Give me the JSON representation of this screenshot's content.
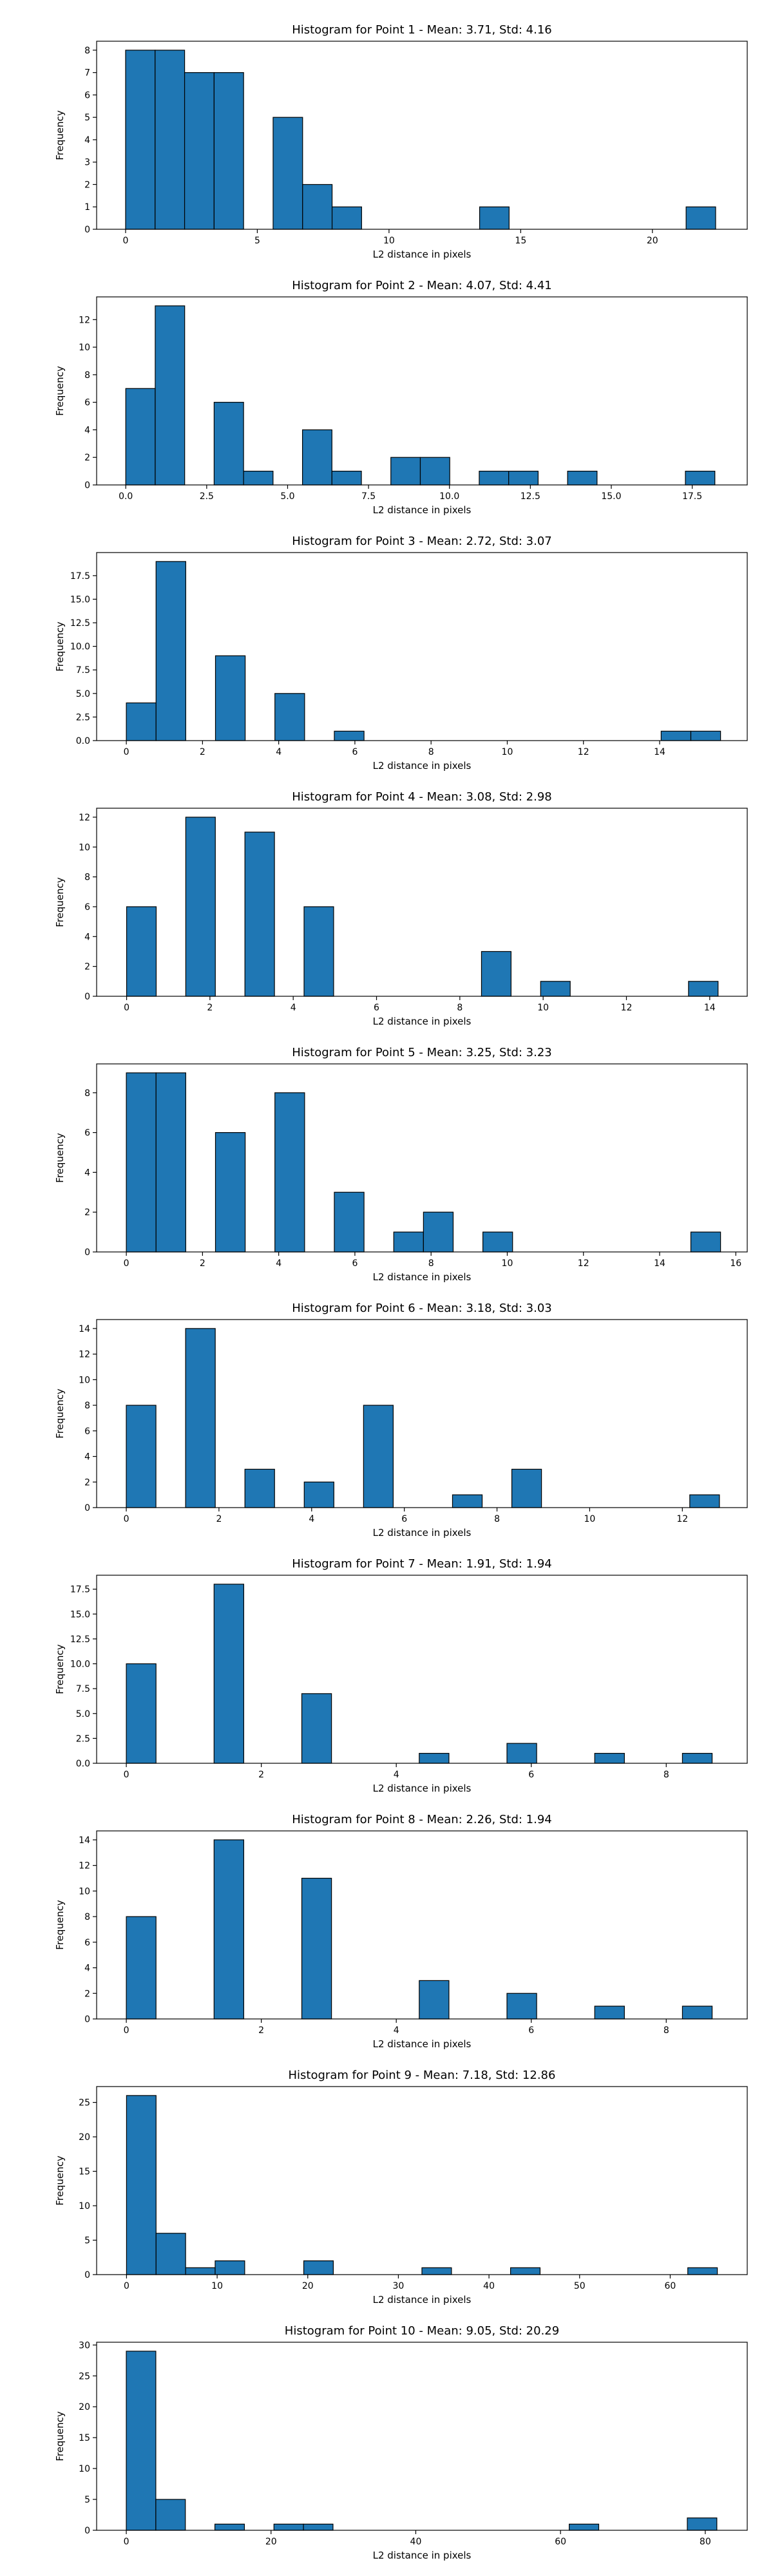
{
  "colors": {
    "bar": "#1f77b4",
    "edge": "#000000"
  },
  "chart_data": [
    {
      "type": "bar",
      "title": "Histogram for Point 1 - Mean: 3.71, Std: 4.16",
      "xlabel": "L2 distance in pixels",
      "ylabel": "Frequency",
      "xlim": [
        -1.1,
        23.6
      ],
      "ylim": [
        0,
        8.4
      ],
      "xticks": [
        0,
        5,
        10,
        15,
        20
      ],
      "yticks": [
        0,
        1,
        2,
        3,
        4,
        5,
        6,
        7,
        8
      ],
      "bins": [
        {
          "x0": 0.0,
          "x1": 1.12,
          "count": 8
        },
        {
          "x0": 1.12,
          "x1": 2.24,
          "count": 8
        },
        {
          "x0": 2.24,
          "x1": 3.36,
          "count": 7
        },
        {
          "x0": 3.36,
          "x1": 4.48,
          "count": 7
        },
        {
          "x0": 5.6,
          "x1": 6.72,
          "count": 5
        },
        {
          "x0": 6.72,
          "x1": 7.84,
          "count": 2
        },
        {
          "x0": 7.84,
          "x1": 8.96,
          "count": 1
        },
        {
          "x0": 13.44,
          "x1": 14.56,
          "count": 1
        },
        {
          "x0": 21.28,
          "x1": 22.4,
          "count": 1
        }
      ]
    },
    {
      "type": "bar",
      "title": "Histogram for Point 2 - Mean: 4.07, Std: 4.41",
      "xlabel": "L2 distance in pixels",
      "ylabel": "Frequency",
      "xlim": [
        -0.9,
        19.2
      ],
      "ylim": [
        0,
        13.65
      ],
      "xticks": [
        0.0,
        2.5,
        5.0,
        7.5,
        10.0,
        12.5,
        15.0,
        17.5
      ],
      "xtick_labels": [
        "0.0",
        "2.5",
        "5.0",
        "7.5",
        "10.0",
        "12.5",
        "15.0",
        "17.5"
      ],
      "yticks": [
        0,
        2,
        4,
        6,
        8,
        10,
        12
      ],
      "bins": [
        {
          "x0": 0.0,
          "x1": 0.91,
          "count": 7
        },
        {
          "x0": 0.91,
          "x1": 1.82,
          "count": 13
        },
        {
          "x0": 2.73,
          "x1": 3.64,
          "count": 6
        },
        {
          "x0": 3.64,
          "x1": 4.55,
          "count": 1
        },
        {
          "x0": 5.46,
          "x1": 6.37,
          "count": 4
        },
        {
          "x0": 6.37,
          "x1": 7.28,
          "count": 1
        },
        {
          "x0": 8.19,
          "x1": 9.1,
          "count": 2
        },
        {
          "x0": 9.1,
          "x1": 10.01,
          "count": 2
        },
        {
          "x0": 10.92,
          "x1": 11.83,
          "count": 1
        },
        {
          "x0": 11.83,
          "x1": 12.74,
          "count": 1
        },
        {
          "x0": 13.65,
          "x1": 14.56,
          "count": 1
        },
        {
          "x0": 17.29,
          "x1": 18.2,
          "count": 1
        }
      ]
    },
    {
      "type": "bar",
      "title": "Histogram for Point 3 - Mean: 2.72, Std: 3.07",
      "xlabel": "L2 distance in pixels",
      "ylabel": "Frequency",
      "xlim": [
        -0.78,
        16.3
      ],
      "ylim": [
        0,
        19.95
      ],
      "xticks": [
        0,
        2,
        4,
        6,
        8,
        10,
        12,
        14
      ],
      "yticks": [
        0.0,
        2.5,
        5.0,
        7.5,
        10.0,
        12.5,
        15.0,
        17.5
      ],
      "ytick_labels": [
        "0.0",
        "2.5",
        "5.0",
        "7.5",
        "10.0",
        "12.5",
        "15.0",
        "17.5"
      ],
      "bins": [
        {
          "x0": 0.0,
          "x1": 0.78,
          "count": 4
        },
        {
          "x0": 0.78,
          "x1": 1.56,
          "count": 19
        },
        {
          "x0": 2.34,
          "x1": 3.12,
          "count": 9
        },
        {
          "x0": 3.9,
          "x1": 4.68,
          "count": 5
        },
        {
          "x0": 5.46,
          "x1": 6.24,
          "count": 1
        },
        {
          "x0": 14.04,
          "x1": 14.82,
          "count": 1
        },
        {
          "x0": 14.82,
          "x1": 15.6,
          "count": 1
        }
      ]
    },
    {
      "type": "bar",
      "title": "Histogram for Point 4 - Mean: 3.08, Std: 2.98",
      "xlabel": "L2 distance in pixels",
      "ylabel": "Frequency",
      "xlim": [
        -0.72,
        14.9
      ],
      "ylim": [
        0,
        12.6
      ],
      "xticks": [
        0,
        2,
        4,
        6,
        8,
        10,
        12,
        14
      ],
      "yticks": [
        0,
        2,
        4,
        6,
        8,
        10,
        12
      ],
      "bins": [
        {
          "x0": 0.0,
          "x1": 0.71,
          "count": 6
        },
        {
          "x0": 1.42,
          "x1": 2.13,
          "count": 12
        },
        {
          "x0": 2.84,
          "x1": 3.55,
          "count": 11
        },
        {
          "x0": 4.26,
          "x1": 4.97,
          "count": 6
        },
        {
          "x0": 8.52,
          "x1": 9.23,
          "count": 3
        },
        {
          "x0": 9.94,
          "x1": 10.65,
          "count": 1
        },
        {
          "x0": 13.49,
          "x1": 14.2,
          "count": 1
        }
      ]
    },
    {
      "type": "bar",
      "title": "Histogram for Point 5 - Mean: 3.25, Std: 3.23",
      "xlabel": "L2 distance in pixels",
      "ylabel": "Frequency",
      "xlim": [
        -0.78,
        16.3
      ],
      "ylim": [
        0,
        9.45
      ],
      "xticks": [
        0,
        2,
        4,
        6,
        8,
        10,
        12,
        14,
        16
      ],
      "yticks": [
        0,
        2,
        4,
        6,
        8
      ],
      "bins": [
        {
          "x0": 0.0,
          "x1": 0.78,
          "count": 9
        },
        {
          "x0": 0.78,
          "x1": 1.56,
          "count": 9
        },
        {
          "x0": 2.34,
          "x1": 3.12,
          "count": 6
        },
        {
          "x0": 3.9,
          "x1": 4.68,
          "count": 8
        },
        {
          "x0": 5.46,
          "x1": 6.24,
          "count": 3
        },
        {
          "x0": 7.02,
          "x1": 7.8,
          "count": 1
        },
        {
          "x0": 7.8,
          "x1": 8.58,
          "count": 2
        },
        {
          "x0": 9.36,
          "x1": 10.14,
          "count": 1
        },
        {
          "x0": 14.82,
          "x1": 15.6,
          "count": 1
        }
      ]
    },
    {
      "type": "bar",
      "title": "Histogram for Point 6 - Mean: 3.18, Std: 3.03",
      "xlabel": "L2 distance in pixels",
      "ylabel": "Frequency",
      "xlim": [
        -0.64,
        13.4
      ],
      "ylim": [
        0,
        14.7
      ],
      "xticks": [
        0,
        2,
        4,
        6,
        8,
        10,
        12
      ],
      "yticks": [
        0,
        2,
        4,
        6,
        8,
        10,
        12,
        14
      ],
      "bins": [
        {
          "x0": 0.0,
          "x1": 0.64,
          "count": 8
        },
        {
          "x0": 1.28,
          "x1": 1.92,
          "count": 14
        },
        {
          "x0": 2.56,
          "x1": 3.2,
          "count": 3
        },
        {
          "x0": 3.84,
          "x1": 4.48,
          "count": 2
        },
        {
          "x0": 5.12,
          "x1": 5.76,
          "count": 8
        },
        {
          "x0": 7.04,
          "x1": 7.68,
          "count": 1
        },
        {
          "x0": 8.32,
          "x1": 8.96,
          "count": 3
        },
        {
          "x0": 12.16,
          "x1": 12.8,
          "count": 1
        }
      ]
    },
    {
      "type": "bar",
      "title": "Histogram for Point 7 - Mean: 1.91, Std: 1.94",
      "xlabel": "L2 distance in pixels",
      "ylabel": "Frequency",
      "xlim": [
        -0.44,
        9.2
      ],
      "ylim": [
        0,
        18.9
      ],
      "xticks": [
        0,
        2,
        4,
        6,
        8
      ],
      "yticks": [
        0.0,
        2.5,
        5.0,
        7.5,
        10.0,
        12.5,
        15.0,
        17.5
      ],
      "ytick_labels": [
        "0.0",
        "2.5",
        "5.0",
        "7.5",
        "10.0",
        "12.5",
        "15.0",
        "17.5"
      ],
      "bins": [
        {
          "x0": 0.0,
          "x1": 0.44,
          "count": 10
        },
        {
          "x0": 1.3,
          "x1": 1.74,
          "count": 18
        },
        {
          "x0": 2.6,
          "x1": 3.04,
          "count": 7
        },
        {
          "x0": 4.34,
          "x1": 4.78,
          "count": 1
        },
        {
          "x0": 5.64,
          "x1": 6.08,
          "count": 2
        },
        {
          "x0": 6.94,
          "x1": 7.38,
          "count": 1
        },
        {
          "x0": 8.24,
          "x1": 8.68,
          "count": 1
        }
      ]
    },
    {
      "type": "bar",
      "title": "Histogram for Point 8 - Mean: 2.26, Std: 1.94",
      "xlabel": "L2 distance in pixels",
      "ylabel": "Frequency",
      "xlim": [
        -0.44,
        9.2
      ],
      "ylim": [
        0,
        14.7
      ],
      "xticks": [
        0,
        2,
        4,
        6,
        8
      ],
      "yticks": [
        0,
        2,
        4,
        6,
        8,
        10,
        12,
        14
      ],
      "bins": [
        {
          "x0": 0.0,
          "x1": 0.44,
          "count": 8
        },
        {
          "x0": 1.3,
          "x1": 1.74,
          "count": 14
        },
        {
          "x0": 2.6,
          "x1": 3.04,
          "count": 11
        },
        {
          "x0": 4.34,
          "x1": 4.78,
          "count": 3
        },
        {
          "x0": 5.64,
          "x1": 6.08,
          "count": 2
        },
        {
          "x0": 6.94,
          "x1": 7.38,
          "count": 1
        },
        {
          "x0": 8.24,
          "x1": 8.68,
          "count": 1
        }
      ]
    },
    {
      "type": "bar",
      "title": "Histogram for Point 9 - Mean: 7.18, Std: 12.86",
      "xlabel": "L2 distance in pixels",
      "ylabel": "Frequency",
      "xlim": [
        -3.3,
        68.5
      ],
      "ylim": [
        0,
        27.3
      ],
      "xticks": [
        0,
        10,
        20,
        30,
        40,
        50,
        60
      ],
      "yticks": [
        0,
        5,
        10,
        15,
        20,
        25
      ],
      "bins": [
        {
          "x0": 0.0,
          "x1": 3.26,
          "count": 26
        },
        {
          "x0": 3.26,
          "x1": 6.52,
          "count": 6
        },
        {
          "x0": 6.52,
          "x1": 9.78,
          "count": 1
        },
        {
          "x0": 9.78,
          "x1": 13.04,
          "count": 2
        },
        {
          "x0": 19.56,
          "x1": 22.82,
          "count": 2
        },
        {
          "x0": 32.6,
          "x1": 35.86,
          "count": 1
        },
        {
          "x0": 42.38,
          "x1": 45.64,
          "count": 1
        },
        {
          "x0": 61.94,
          "x1": 65.2,
          "count": 1
        }
      ]
    },
    {
      "type": "bar",
      "title": "Histogram for Point 10 - Mean: 9.05, Std: 20.29",
      "xlabel": "L2 distance in pixels",
      "ylabel": "Frequency",
      "xlim": [
        -4.1,
        85.8
      ],
      "ylim": [
        0,
        30.45
      ],
      "xticks": [
        0,
        20,
        40,
        60,
        80
      ],
      "yticks": [
        0,
        5,
        10,
        15,
        20,
        25,
        30
      ],
      "bins": [
        {
          "x0": 0.0,
          "x1": 4.08,
          "count": 29
        },
        {
          "x0": 4.08,
          "x1": 8.16,
          "count": 5
        },
        {
          "x0": 12.24,
          "x1": 16.32,
          "count": 1
        },
        {
          "x0": 20.4,
          "x1": 24.48,
          "count": 1
        },
        {
          "x0": 24.48,
          "x1": 28.56,
          "count": 1
        },
        {
          "x0": 61.2,
          "x1": 65.28,
          "count": 1
        },
        {
          "x0": 77.52,
          "x1": 81.6,
          "count": 2
        }
      ]
    }
  ]
}
